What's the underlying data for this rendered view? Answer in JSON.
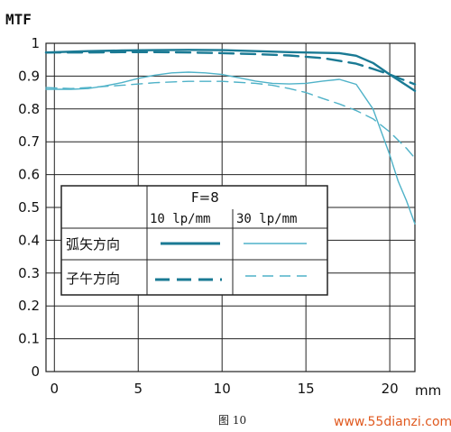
{
  "chart_data": {
    "type": "line",
    "ylabel": "MTF",
    "xunit": "mm",
    "xlim": [
      -0.5,
      21.5
    ],
    "ylim": [
      0,
      1
    ],
    "x_ticks": [
      "0",
      "5",
      "10",
      "15",
      "20"
    ],
    "y_ticks": [
      "0",
      "0.1",
      "0.2",
      "0.3",
      "0.4",
      "0.5",
      "0.6",
      "0.7",
      "0.8",
      "0.9",
      "1"
    ],
    "grid": true,
    "legend": {
      "header": "F=8",
      "col1": "10 lp/mm",
      "col2": "30 lp/mm",
      "row1": "弧矢方向",
      "row2": "子午方向"
    },
    "series": [
      {
        "name": "弧矢方向 10 lp/mm",
        "color": "#1a7a94",
        "style": "solid",
        "x": [
          -0.5,
          2,
          4,
          6,
          8,
          10,
          12,
          14,
          16,
          17,
          18,
          19,
          20,
          21,
          21.5
        ],
        "y": [
          0.972,
          0.976,
          0.978,
          0.979,
          0.98,
          0.979,
          0.976,
          0.973,
          0.971,
          0.97,
          0.962,
          0.94,
          0.905,
          0.872,
          0.855
        ]
      },
      {
        "name": "子午方向 10 lp/mm",
        "color": "#1a7a94",
        "style": "dashed",
        "x": [
          -0.5,
          2,
          4,
          6,
          8,
          10,
          12,
          14,
          16,
          18,
          19,
          20,
          21,
          21.5
        ],
        "y": [
          0.972,
          0.972,
          0.973,
          0.973,
          0.972,
          0.97,
          0.967,
          0.963,
          0.955,
          0.938,
          0.922,
          0.905,
          0.885,
          0.875
        ]
      },
      {
        "name": "弧矢方向 30 lp/mm",
        "color": "#4fb2c8",
        "style": "solid",
        "x": [
          -0.5,
          1,
          2,
          3,
          4,
          5,
          6,
          7,
          8,
          9,
          10,
          11,
          12,
          13,
          14,
          15,
          16,
          17,
          18,
          19,
          20,
          20.5,
          21,
          21.5
        ],
        "y": [
          0.86,
          0.86,
          0.862,
          0.87,
          0.88,
          0.893,
          0.903,
          0.91,
          0.912,
          0.91,
          0.905,
          0.895,
          0.885,
          0.878,
          0.876,
          0.878,
          0.885,
          0.89,
          0.875,
          0.8,
          0.66,
          0.58,
          0.52,
          0.45
        ]
      },
      {
        "name": "子午方向 30 lp/mm",
        "color": "#4fb2c8",
        "style": "dashed",
        "x": [
          -0.5,
          1,
          2,
          4,
          6,
          8,
          10,
          12,
          13,
          14,
          15,
          16,
          17,
          18,
          19,
          20,
          21,
          21.5
        ],
        "y": [
          0.865,
          0.862,
          0.865,
          0.872,
          0.88,
          0.884,
          0.884,
          0.878,
          0.872,
          0.862,
          0.85,
          0.832,
          0.815,
          0.795,
          0.77,
          0.73,
          0.68,
          0.65
        ]
      }
    ]
  },
  "caption": "图 10",
  "watermark": "www.55dianzi.com"
}
